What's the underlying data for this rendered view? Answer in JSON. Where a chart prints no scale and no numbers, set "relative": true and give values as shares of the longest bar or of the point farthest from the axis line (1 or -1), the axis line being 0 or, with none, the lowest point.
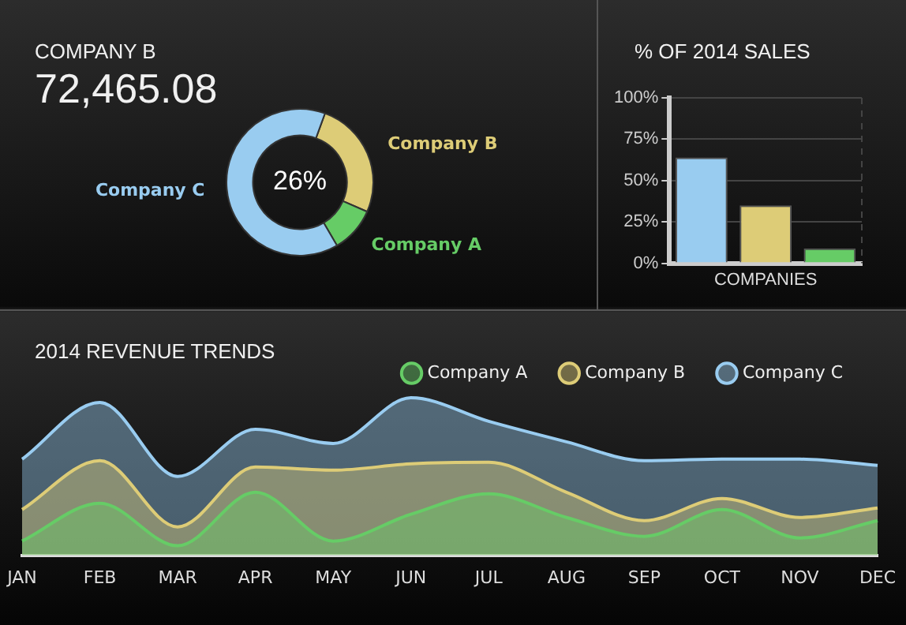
{
  "chart_data": [
    {
      "type": "donut",
      "title": "COMPANY B",
      "subtitle": "72,465.08",
      "categories": [
        "Company B",
        "Company A",
        "Company C"
      ],
      "values": [
        26,
        10,
        64
      ],
      "colors": [
        "#ddcc77",
        "#66cc66",
        "#99ccf0"
      ],
      "annotations": [
        "26%"
      ]
    },
    {
      "type": "bar",
      "title": "% OF 2014 SALES",
      "xlabel": "COMPANIES",
      "categories": [
        null,
        null,
        null
      ],
      "values": [
        64,
        35,
        9
      ],
      "colors": [
        "#99ccf0",
        "#ddcc77",
        "#66cc66"
      ],
      "ylim": [
        0,
        100
      ],
      "yticks": [
        {
          "value": 0,
          "label": "0%"
        },
        {
          "value": 25,
          "label": "25%"
        },
        {
          "value": 50,
          "label": "50%"
        },
        {
          "value": 75,
          "label": "75%"
        },
        {
          "value": 100,
          "label": "100%"
        }
      ],
      "grid": "y"
    },
    {
      "type": "area",
      "title": "2014 REVENUE TRENDS",
      "categories": [
        "JAN",
        "FEB",
        "MAR",
        "APR",
        "MAY",
        "JUN",
        "JUL",
        "AUG",
        "SEP",
        "OCT",
        "NOV",
        "DEC"
      ],
      "relative": true,
      "legend": "top right",
      "series": [
        {
          "name": "Company A",
          "color": "#66cc66",
          "values": [
            0.09,
            0.33,
            0.06,
            0.4,
            0.09,
            0.26,
            0.39,
            0.24,
            0.12,
            0.29,
            0.11,
            0.22
          ]
        },
        {
          "name": "Company B",
          "color": "#ddcc77",
          "values": [
            0.29,
            0.6,
            0.18,
            0.56,
            0.54,
            0.58,
            0.59,
            0.4,
            0.22,
            0.36,
            0.24,
            0.3
          ]
        },
        {
          "name": "Company C",
          "color": "#99ccf0",
          "values": [
            0.61,
            0.97,
            0.5,
            0.8,
            0.71,
            1,
            0.85,
            0.72,
            0.6,
            0.61,
            0.61,
            0.57
          ]
        }
      ]
    }
  ]
}
